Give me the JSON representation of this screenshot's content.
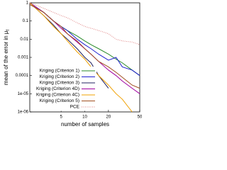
{
  "chart_data": {
    "type": "line",
    "x_label": "number of samples",
    "y_label": "mean of the error in μ",
    "y_label_subscript": "f",
    "x": [
      2,
      3,
      4,
      5,
      6,
      8,
      10,
      12,
      15,
      20,
      25,
      30,
      40,
      50
    ],
    "series": [
      {
        "name": "Kriging (Criterion 1)",
        "color": "#2a8a2a",
        "values": [
          1,
          0.3,
          0.1,
          0.05,
          0.03,
          0.015,
          0.008,
          0.005,
          0.003,
          0.0015,
          0.0008,
          0.0005,
          0.0002,
          0.0001
        ]
      },
      {
        "name": "Kriging (Criterion 2)",
        "color": "#2020d0",
        "values": [
          1,
          0.3,
          0.1,
          0.05,
          0.03,
          0.01,
          0.005,
          0.003,
          0.0015,
          0.0007,
          0.001,
          0.0003,
          0.0002,
          0.0001
        ]
      },
      {
        "name": "Kriging (Criterion 3)",
        "color": "#202060",
        "values": [
          1,
          0.2,
          0.06,
          0.02,
          0.01,
          0.003,
          0.001,
          0.0005,
          0.0001,
          2e-05,
          null,
          null,
          null,
          null
        ]
      },
      {
        "name": "Kriging (Criterion 4D)",
        "color": "#a000a0",
        "values": [
          1,
          0.3,
          0.1,
          0.04,
          0.02,
          0.007,
          0.003,
          0.0015,
          0.0006,
          0.0002,
          0.0001,
          5e-05,
          2e-05,
          1e-05
        ]
      },
      {
        "name": "Kriging (Criterion 4C)",
        "color": "#f0a000",
        "values": [
          1,
          0.2,
          0.05,
          0.02,
          0.008,
          0.002,
          0.0008,
          0.0003,
          0.0001,
          3e-05,
          1e-05,
          5e-06,
          1e-06,
          null
        ]
      },
      {
        "name": "Kriging (Criterion 5)",
        "color": "#a05020",
        "values": [
          0.8,
          0.3,
          0.1,
          0.05,
          0.02,
          0.008,
          0.003,
          0.0015,
          0.0006,
          0.0003,
          0.00015,
          8e-05,
          3e-05,
          2e-05
        ]
      },
      {
        "name": "PCE",
        "color": "#e08080",
        "dash": "dotted",
        "values": [
          1,
          0.5,
          0.3,
          0.2,
          0.15,
          0.08,
          0.05,
          0.04,
          0.03,
          0.02,
          0.01,
          0.008,
          0.007,
          0.005
        ]
      }
    ],
    "xlog": true,
    "ylog": true,
    "xlim": [
      2,
      50
    ],
    "xticks": [
      5,
      10,
      20,
      50
    ],
    "ylim": [
      1e-06,
      1
    ],
    "yticks": [
      1,
      0.1,
      0.01,
      0.001,
      0.0001,
      {
        "value": 1e-05,
        "label": "1e-05"
      },
      {
        "value": 1e-06,
        "label": "1e-06"
      }
    ]
  }
}
